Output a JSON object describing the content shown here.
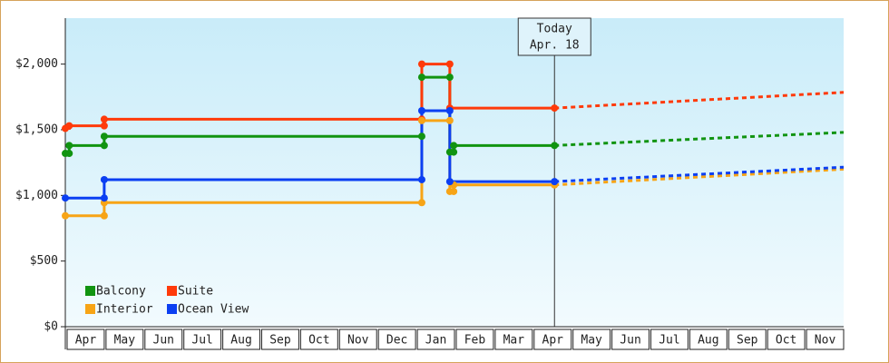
{
  "chart_data": {
    "type": "line",
    "step": true,
    "categories": [
      "Apr",
      "May",
      "Jun",
      "Jul",
      "Aug",
      "Sep",
      "Oct",
      "Nov",
      "Dec",
      "Jan",
      "Feb",
      "Mar",
      "Apr",
      "May",
      "Jun",
      "Jul",
      "Aug",
      "Sep",
      "Oct",
      "Nov"
    ],
    "xlim": [
      0,
      20
    ],
    "ylim": [
      0,
      2350
    ],
    "yticks": [
      {
        "value": 0,
        "label": "$0"
      },
      {
        "value": 500,
        "label": "$500"
      },
      {
        "value": 1000,
        "label": "$1,000"
      },
      {
        "value": 1500,
        "label": "$1,500"
      },
      {
        "value": 2000,
        "label": "$2,000"
      }
    ],
    "grid": false,
    "legend": "bottom-left",
    "annotation": {
      "x": 12.57,
      "label": [
        "Today",
        "Apr. 18"
      ]
    },
    "series": [
      {
        "name": "Balcony",
        "color": "#119411",
        "x": [
          0,
          0.1,
          0.1,
          1,
          1,
          9.16,
          9.16,
          9.88,
          9.88,
          9.98,
          9.98,
          12.57
        ],
        "values": [
          1320,
          1320,
          1380,
          1380,
          1450,
          1450,
          1900,
          1900,
          1330,
          1330,
          1380,
          1380
        ],
        "projection": {
          "x": [
            12.57,
            20
          ],
          "values": [
            1380,
            1480
          ]
        }
      },
      {
        "name": "Suite",
        "color": "#ff3a0a",
        "x": [
          0,
          0.1,
          1,
          1,
          9.16,
          9.16,
          9.88,
          9.88,
          12.57
        ],
        "values": [
          1510,
          1530,
          1530,
          1580,
          1580,
          2000,
          2000,
          1665,
          1665
        ],
        "projection": {
          "x": [
            12.57,
            20
          ],
          "values": [
            1665,
            1785
          ]
        }
      },
      {
        "name": "Interior",
        "color": "#f7a416",
        "x": [
          0,
          1,
          1,
          9.16,
          9.16,
          9.88,
          9.88,
          9.98,
          9.98,
          12.57
        ],
        "values": [
          845,
          845,
          945,
          945,
          1570,
          1570,
          1030,
          1030,
          1080,
          1080
        ],
        "projection": {
          "x": [
            12.57,
            20
          ],
          "values": [
            1080,
            1200
          ]
        }
      },
      {
        "name": "Ocean View",
        "color": "#0b3ff2",
        "x": [
          0,
          1,
          1,
          9.16,
          9.16,
          9.88,
          9.88,
          12.57
        ],
        "values": [
          980,
          980,
          1120,
          1120,
          1645,
          1645,
          1105,
          1105
        ],
        "projection": {
          "x": [
            12.57,
            20
          ],
          "values": [
            1105,
            1215
          ]
        }
      }
    ]
  }
}
